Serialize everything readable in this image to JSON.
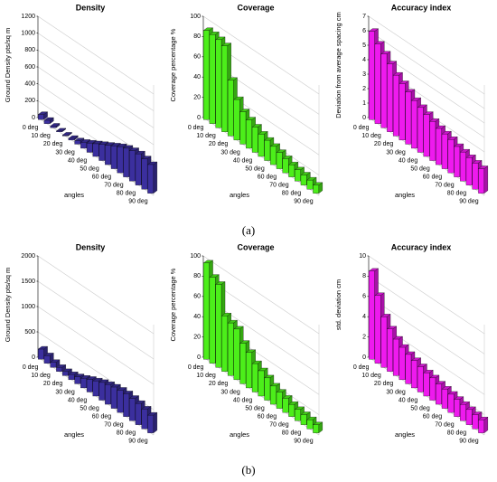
{
  "captions": [
    "(a)",
    "(b)"
  ],
  "chart_data": [
    {
      "type": "bar3d",
      "title": "Density",
      "ylabel": "Ground Density pts/sq m",
      "xlabel": "angles",
      "color": "#3b2f9e",
      "categories": [
        "0 deg",
        null,
        "10 deg",
        null,
        "20 deg",
        null,
        "30 deg",
        null,
        "40 deg",
        null,
        "50 deg",
        null,
        "60 deg",
        null,
        "70 deg",
        null,
        "80 deg",
        null,
        "90 deg"
      ],
      "values": [
        60,
        40,
        20,
        10,
        10,
        20,
        40,
        70,
        110,
        150,
        190,
        230,
        270,
        310,
        340,
        360,
        370,
        360,
        340
      ],
      "ylim": [
        0,
        1200
      ],
      "yticks": [
        0,
        200,
        400,
        600,
        800,
        1000,
        1200
      ],
      "grid": true
    },
    {
      "type": "bar3d",
      "title": "Coverage",
      "ylabel": "Coverage percentage %",
      "xlabel": "angles",
      "color": "#4cee1a",
      "categories": [
        "0 deg",
        null,
        "10 deg",
        null,
        "20 deg",
        null,
        "30 deg",
        null,
        "40 deg",
        null,
        "50 deg",
        null,
        "60 deg",
        null,
        "70 deg",
        null,
        "80 deg",
        null,
        "90 deg"
      ],
      "values": [
        88,
        88,
        87,
        85,
        55,
        40,
        32,
        28,
        25,
        22,
        20,
        18,
        16,
        14,
        12,
        11,
        10,
        9,
        8
      ],
      "ylim": [
        0,
        100
      ],
      "yticks": [
        0,
        20,
        40,
        60,
        80,
        100
      ],
      "grid": true
    },
    {
      "type": "bar3d",
      "title": "Accuracy index",
      "ylabel": "Deviation from average spacing cm",
      "xlabel": "angles",
      "color": "#ee1aee",
      "categories": [
        "0 deg",
        null,
        "10 deg",
        null,
        "20 deg",
        null,
        "30 deg",
        null,
        "40 deg",
        null,
        "50 deg",
        null,
        "60 deg",
        null,
        "70 deg",
        null,
        "80 deg",
        null,
        "90 deg"
      ],
      "values": [
        6.1,
        5.5,
        5.1,
        4.7,
        4.2,
        3.9,
        3.6,
        3.3,
        3.1,
        2.9,
        2.7,
        2.5,
        2.4,
        2.3,
        2.1,
        2.0,
        1.9,
        1.8,
        1.7
      ],
      "ylim": [
        0,
        7
      ],
      "yticks": [
        0,
        1,
        2,
        3,
        4,
        5,
        6,
        7
      ],
      "grid": true
    },
    {
      "type": "bar3d",
      "title": "Density",
      "ylabel": "Ground Density pts/sq m",
      "xlabel": "angles",
      "color": "#3b2f9e",
      "categories": [
        "0 deg",
        null,
        "10 deg",
        null,
        "20 deg",
        null,
        "30 deg",
        null,
        "40 deg",
        null,
        "50 deg",
        null,
        "60 deg",
        null,
        "70 deg",
        null,
        "80 deg",
        null,
        "90 deg"
      ],
      "values": [
        200,
        150,
        100,
        80,
        80,
        100,
        140,
        190,
        250,
        300,
        350,
        390,
        420,
        440,
        450,
        440,
        420,
        390,
        350
      ],
      "ylim": [
        0,
        2000
      ],
      "yticks": [
        0,
        500,
        1000,
        1500,
        2000
      ],
      "grid": true
    },
    {
      "type": "bar3d",
      "title": "Coverage",
      "ylabel": "Coverage percentage %",
      "xlabel": "angles",
      "color": "#4cee1a",
      "categories": [
        "0 deg",
        null,
        "10 deg",
        null,
        "20 deg",
        null,
        "30 deg",
        null,
        "40 deg",
        null,
        "50 deg",
        null,
        "60 deg",
        null,
        "70 deg",
        null,
        "80 deg",
        null,
        "90 deg"
      ],
      "values": [
        95,
        85,
        82,
        55,
        52,
        50,
        40,
        35,
        28,
        25,
        22,
        18,
        16,
        14,
        12,
        11,
        10,
        9,
        8
      ],
      "ylim": [
        0,
        100
      ],
      "yticks": [
        0,
        20,
        40,
        60,
        80,
        100
      ],
      "grid": true
    },
    {
      "type": "bar3d",
      "title": "Accuracy index",
      "ylabel": "std. deviation cm",
      "xlabel": "angles",
      "color": "#ee1aee",
      "categories": [
        "0 deg",
        null,
        "10 deg",
        null,
        "20 deg",
        null,
        "30 deg",
        null,
        "40 deg",
        null,
        "50 deg",
        null,
        "60 deg",
        null,
        "70 deg",
        null,
        "80 deg",
        null,
        "90 deg"
      ],
      "values": [
        8.7,
        6.7,
        5.0,
        4.2,
        3.6,
        3.2,
        2.9,
        2.7,
        2.5,
        2.3,
        2.2,
        2.0,
        1.9,
        1.8,
        1.7,
        1.6,
        1.5,
        1.4,
        1.3
      ],
      "ylim": [
        0,
        10
      ],
      "yticks": [
        0,
        2,
        4,
        6,
        8,
        10
      ],
      "grid": true
    }
  ]
}
